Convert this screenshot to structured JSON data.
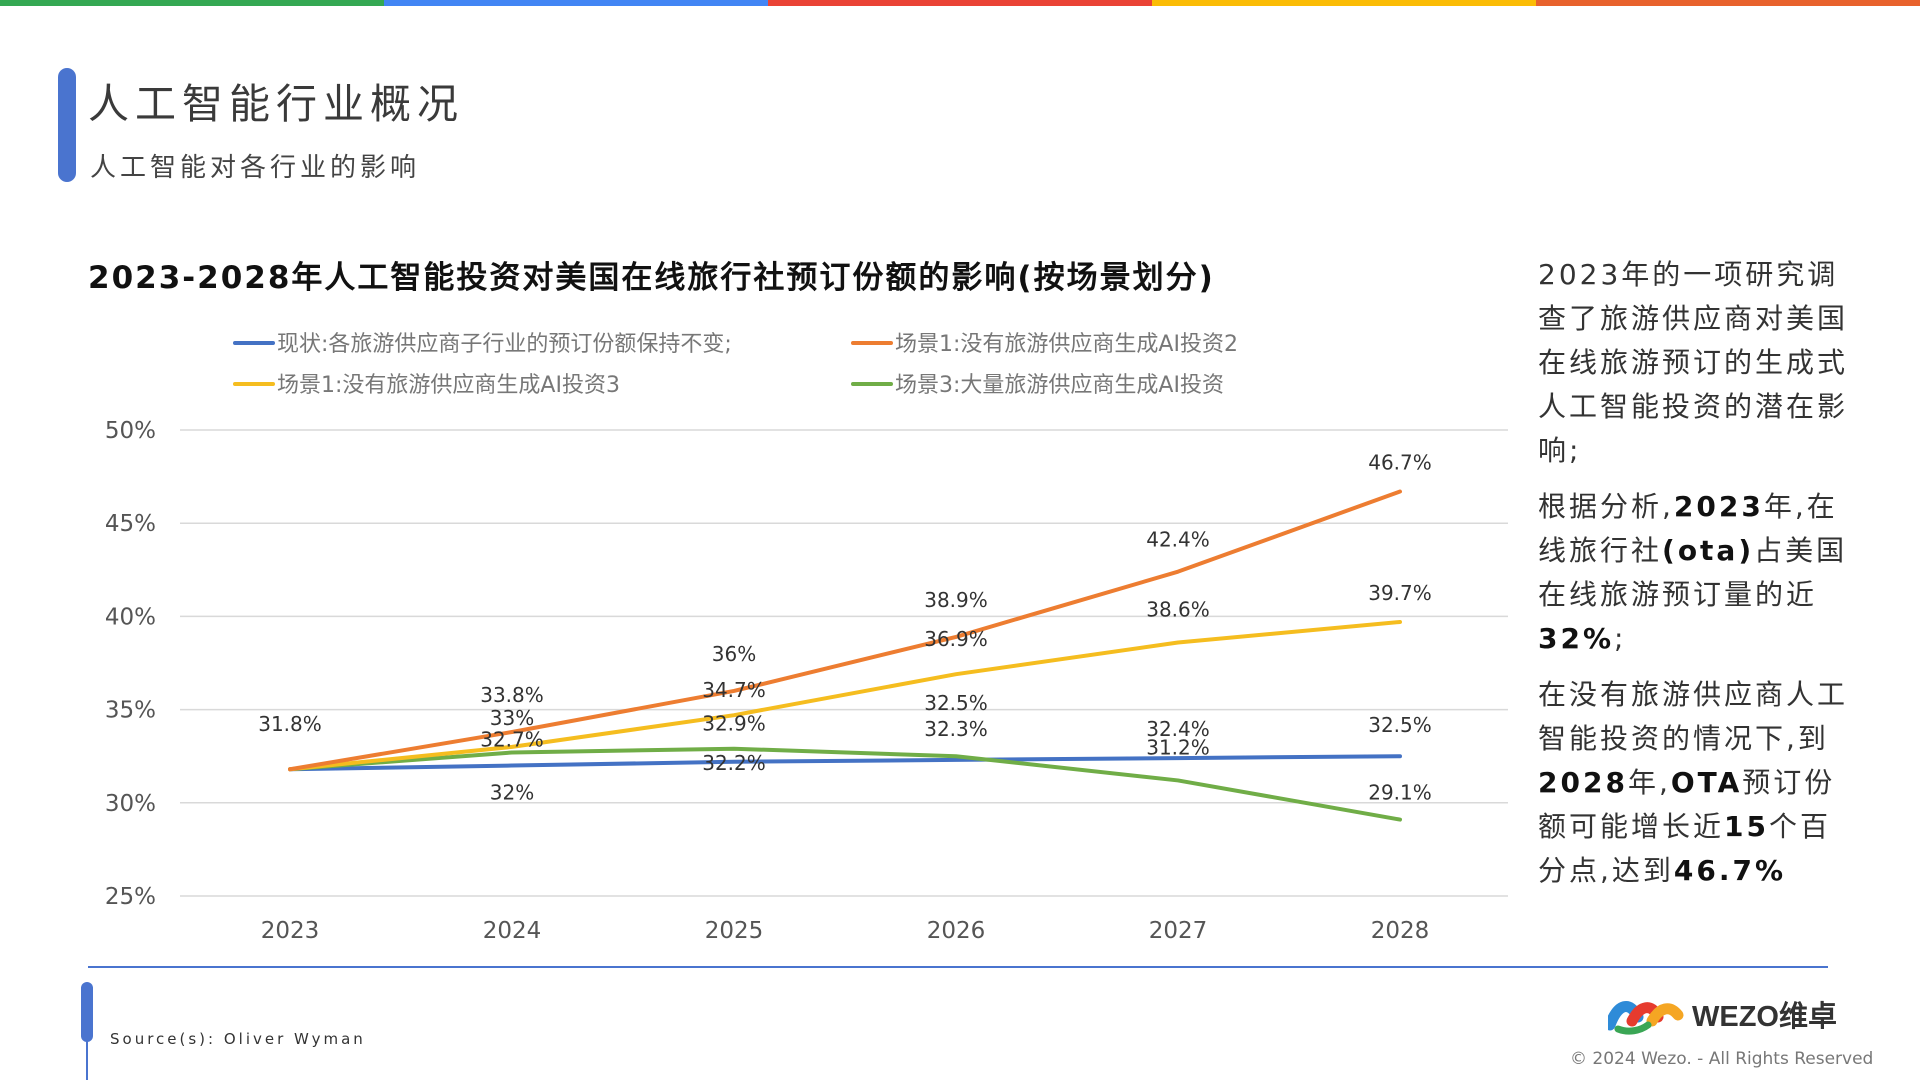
{
  "top_bar_colors": [
    "#34a853",
    "#4285f4",
    "#ea4335",
    "#fbbc05",
    "#e8622c"
  ],
  "header": {
    "title": "人工智能行业概况",
    "subtitle": "人工智能对各行业的影响"
  },
  "chart_title": "2023-2028年人工智能投资对美国在线旅行社预订份额的影响(按场景划分)",
  "chart_data": {
    "type": "line",
    "x": [
      "2023",
      "2024",
      "2025",
      "2026",
      "2027",
      "2028"
    ],
    "ylim": [
      25,
      50
    ],
    "yticks": [
      "25%",
      "30%",
      "35%",
      "40%",
      "45%",
      "50%"
    ],
    "grid": true,
    "legend_position": "top",
    "series": [
      {
        "name": "现状:各旅游供应商子行业的预订份额保持不变;",
        "color": "#4472c4",
        "values": [
          31.8,
          32,
          32.2,
          32.3,
          32.4,
          32.5
        ],
        "labels": [
          "",
          "32%",
          "32.2%",
          "32.3%",
          "32.4%",
          "32.5%"
        ]
      },
      {
        "name": "场景1:没有旅游供应商生成AI投资2",
        "color": "#ed7d31",
        "values": [
          31.8,
          33.8,
          36,
          38.9,
          42.4,
          46.7
        ],
        "labels": [
          "31.8%",
          "33.8%",
          "36%",
          "38.9%",
          "42.4%",
          "46.7%"
        ]
      },
      {
        "name": "场景1:没有旅游供应商生成AI投资3",
        "color": "#f5bd1f",
        "values": [
          31.8,
          33,
          34.7,
          36.9,
          38.6,
          39.7
        ],
        "labels": [
          "",
          "33%",
          "34.7%",
          "36.9%",
          "38.6%",
          "39.7%"
        ]
      },
      {
        "name": "场景3:大量旅游供应商生成AI投资",
        "color": "#70ad47",
        "values": [
          31.8,
          32.7,
          32.9,
          32.5,
          31.2,
          29.1
        ],
        "labels": [
          "",
          "32.7%",
          "32.9%",
          "32.5%",
          "31.2%",
          "29.1%"
        ]
      }
    ]
  },
  "side_text": {
    "p1": "2023年的一项研究调查了旅游供应商对美国在线旅游预订的生成式人工智能投资的潜在影响;",
    "p2_a": "根据分析,",
    "p2_b": "2023",
    "p2_c": "年,在线旅行社",
    "p2_d": "(ota)",
    "p2_e": "占美国在线旅游预订量的近",
    "p2_f": "32%",
    "p2_g": ";",
    "p3_a": "在没有旅游供应商人工智能投资的情况下,到",
    "p3_b": "2028",
    "p3_c": "年,",
    "p3_d": "OTA",
    "p3_e": "预订份额可能增长近",
    "p3_f": "15",
    "p3_g": "个百分点,达到",
    "p3_h": "46.7%"
  },
  "source": "Source(s): Oliver Wyman",
  "logo": {
    "text": "WEZO维卓",
    "colors": [
      "#2e8bd8",
      "#e63b2e",
      "#f5a623",
      "#3aa655"
    ]
  },
  "copyright": "© 2024 Wezo. - All Rights Reserved"
}
